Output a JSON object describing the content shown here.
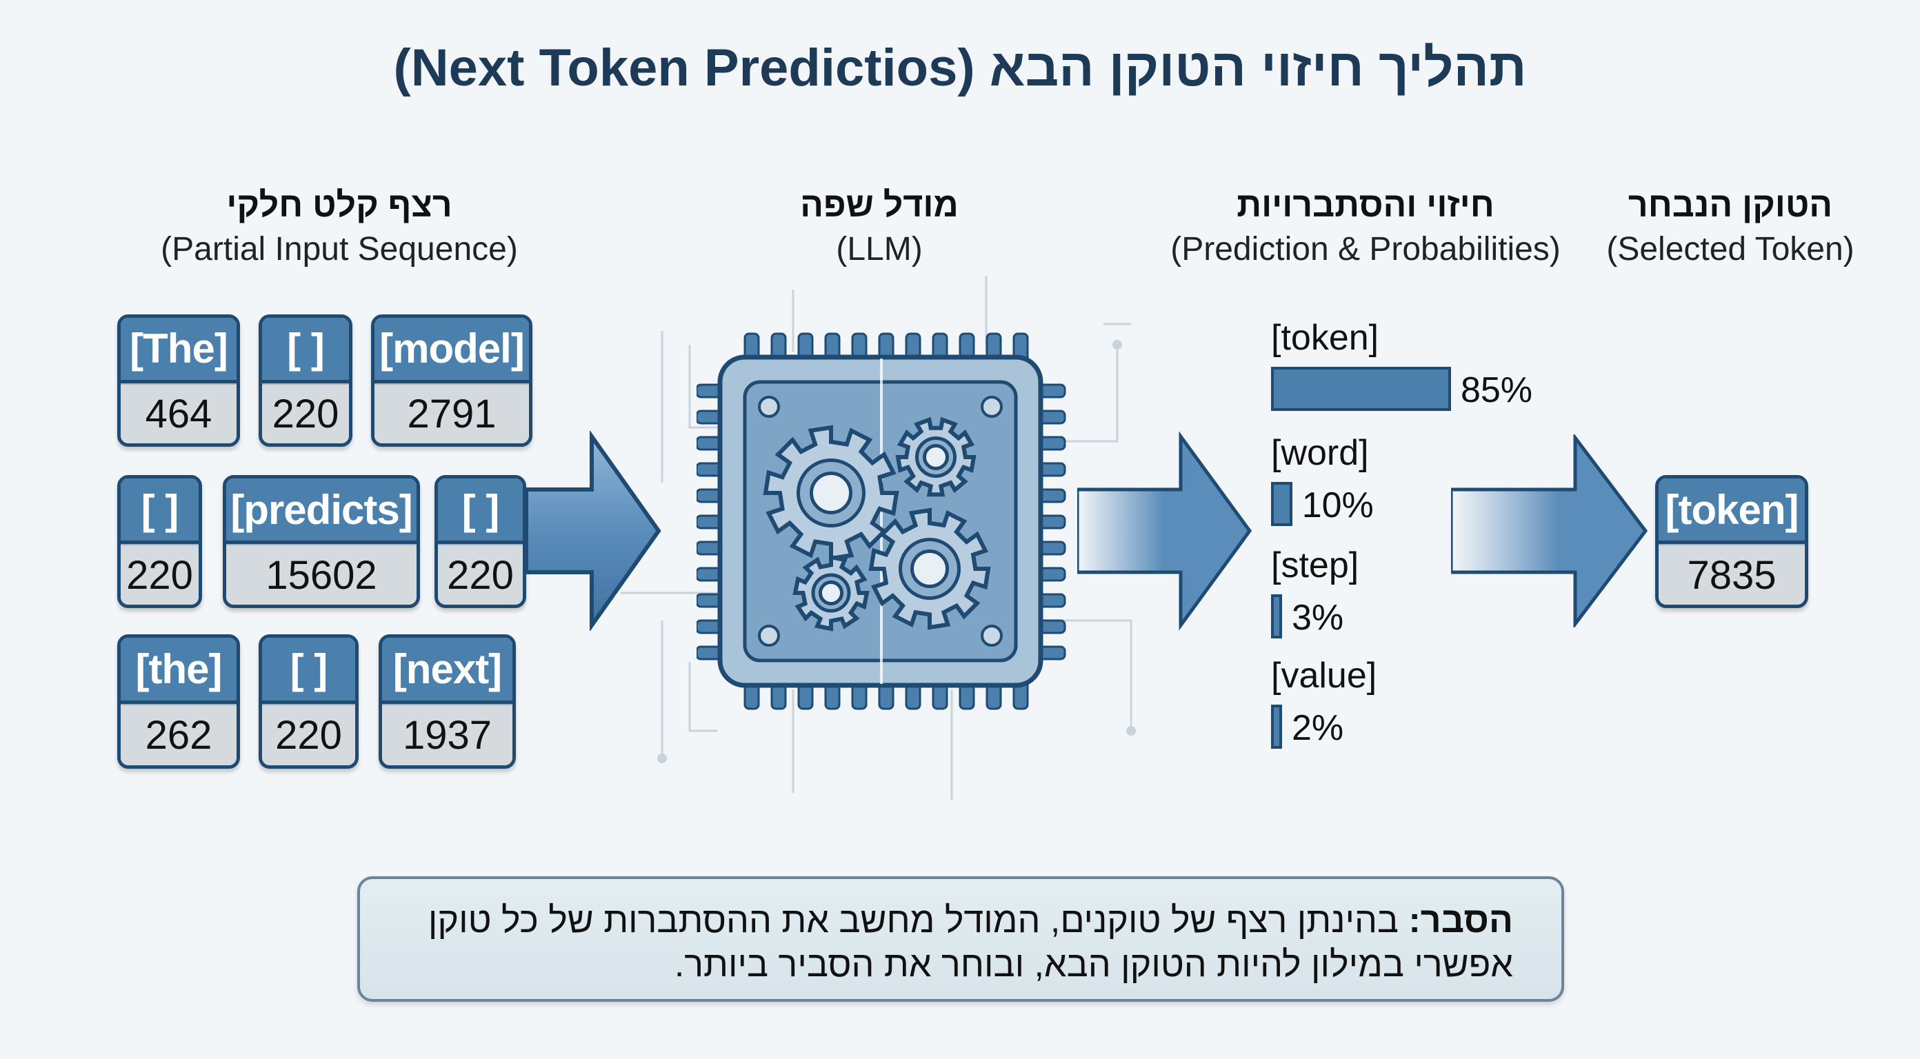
{
  "title": "תהליך חיזוי הטוקן הבא (Next Token Predictios)",
  "columns": [
    {
      "he": "רצף קלט חלקי",
      "en": "(Partial Input Sequence)"
    },
    {
      "he": "מודל שפה",
      "en": "(LLM)"
    },
    {
      "he": "חיזוי והסתברויות",
      "en": "(Prediction & Probabilities)"
    },
    {
      "he": "הטוקן הנבחר",
      "en": "(Selected Token)"
    }
  ],
  "input_tokens": [
    {
      "text": "[The]",
      "id": "464"
    },
    {
      "text": "[ ]",
      "id": "220"
    },
    {
      "text": "[model]",
      "id": "2791"
    },
    {
      "text": "[ ]",
      "id": "220"
    },
    {
      "text": "[predicts]",
      "id": "15602"
    },
    {
      "text": "[ ]",
      "id": "220"
    },
    {
      "text": "[the]",
      "id": "262"
    },
    {
      "text": "[ ]",
      "id": "220"
    },
    {
      "text": "[next]",
      "id": "1937"
    }
  ],
  "predictions": [
    {
      "label": "[token]",
      "percent": 85,
      "text": "85%"
    },
    {
      "label": "[word]",
      "percent": 10,
      "text": "10%"
    },
    {
      "label": "[step]",
      "percent": 3,
      "text": "3%"
    },
    {
      "label": "[value]",
      "percent": 2,
      "text": "2%"
    }
  ],
  "selected": {
    "text": "[token]",
    "id": "7835"
  },
  "explanation": {
    "bold": "הסבר:",
    "text": " בהינתן רצף של טוקנים, המודל מחשב את ההסתברות של כל טוקן אפשרי במילון להיות הטוקן הבא, ובוחר את הסביר ביותר."
  },
  "colors": {
    "token_blue": "#4b80ad",
    "token_border": "#1f4a72",
    "token_grey": "#d5dadf",
    "title": "#1d3a57"
  },
  "icons": [
    "gear-icon",
    "chip-icon",
    "arrow-right-icon"
  ]
}
